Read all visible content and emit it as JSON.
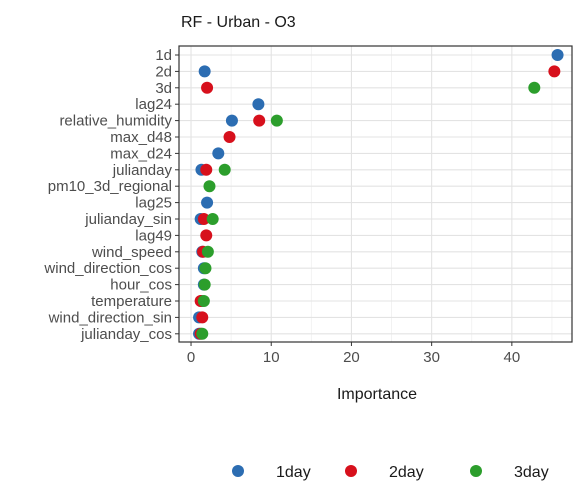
{
  "chart_data": {
    "type": "scatter",
    "title": "RF - Urban - O3",
    "xlabel": "Importance",
    "ylabel": "",
    "xlim": [
      -1.5,
      47.5
    ],
    "x_ticks": [
      0,
      10,
      20,
      30,
      40
    ],
    "grid": true,
    "legend_position": "bottom",
    "categories": [
      "1d",
      "2d",
      "3d",
      "lag24",
      "relative_humidity",
      "max_d48",
      "max_d24",
      "julianday",
      "pm10_3d_regional",
      "lag25",
      "julianday_sin",
      "lag49",
      "wind_speed",
      "wind_direction_cos",
      "hour_cos",
      "temperature",
      "wind_direction_sin",
      "julianday_cos"
    ],
    "series": [
      {
        "name": "1day",
        "color": "#2c6db2",
        "values": [
          45.7,
          1.7,
          null,
          8.4,
          5.1,
          null,
          3.4,
          1.3,
          null,
          2.0,
          1.2,
          null,
          1.4,
          1.6,
          1.6,
          1.3,
          1.0,
          1.0
        ]
      },
      {
        "name": "2day",
        "color": "#d7101c",
        "values": [
          null,
          45.3,
          2.0,
          null,
          8.5,
          4.8,
          null,
          1.9,
          null,
          null,
          1.6,
          1.9,
          1.5,
          null,
          null,
          1.2,
          1.4,
          1.2
        ]
      },
      {
        "name": "3day",
        "color": "#2c9e2c",
        "values": [
          null,
          null,
          42.8,
          null,
          10.7,
          null,
          null,
          4.2,
          2.3,
          null,
          2.7,
          null,
          2.1,
          1.8,
          1.7,
          1.6,
          null,
          1.4
        ]
      }
    ]
  }
}
